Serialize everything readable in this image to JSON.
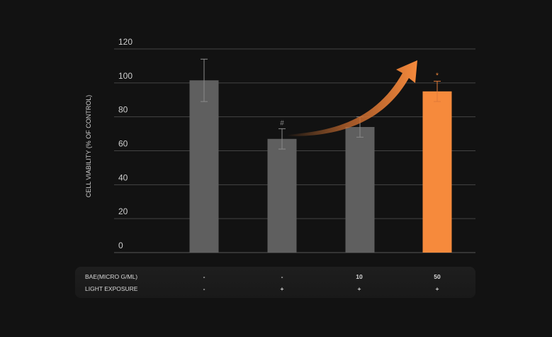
{
  "chart_data": {
    "type": "bar",
    "ylabel": "CELL VIABILITY (% OF CONTROL)",
    "ylim": [
      0,
      120
    ],
    "yticks": [
      0,
      20,
      40,
      60,
      80,
      100,
      120
    ],
    "grid": true,
    "values": [
      101.5,
      67,
      74,
      95
    ],
    "errors": [
      12.5,
      6,
      6,
      6
    ],
    "annotations": [
      "",
      "#",
      "",
      "*"
    ],
    "colors": [
      "#5f5f5f",
      "#5f5f5f",
      "#5f5f5f",
      "#f68a3c"
    ],
    "trend_arrow": {
      "from_bar": 2,
      "to_bar": 4,
      "color": "#f68a3c"
    },
    "conditions": [
      {
        "label": "BAE(MICRO G/ML)",
        "values": [
          "-",
          "-",
          "10",
          "50"
        ]
      },
      {
        "label": "LIGHT EXPOSURE",
        "values": [
          "-",
          "+",
          "+",
          "+"
        ]
      }
    ]
  }
}
